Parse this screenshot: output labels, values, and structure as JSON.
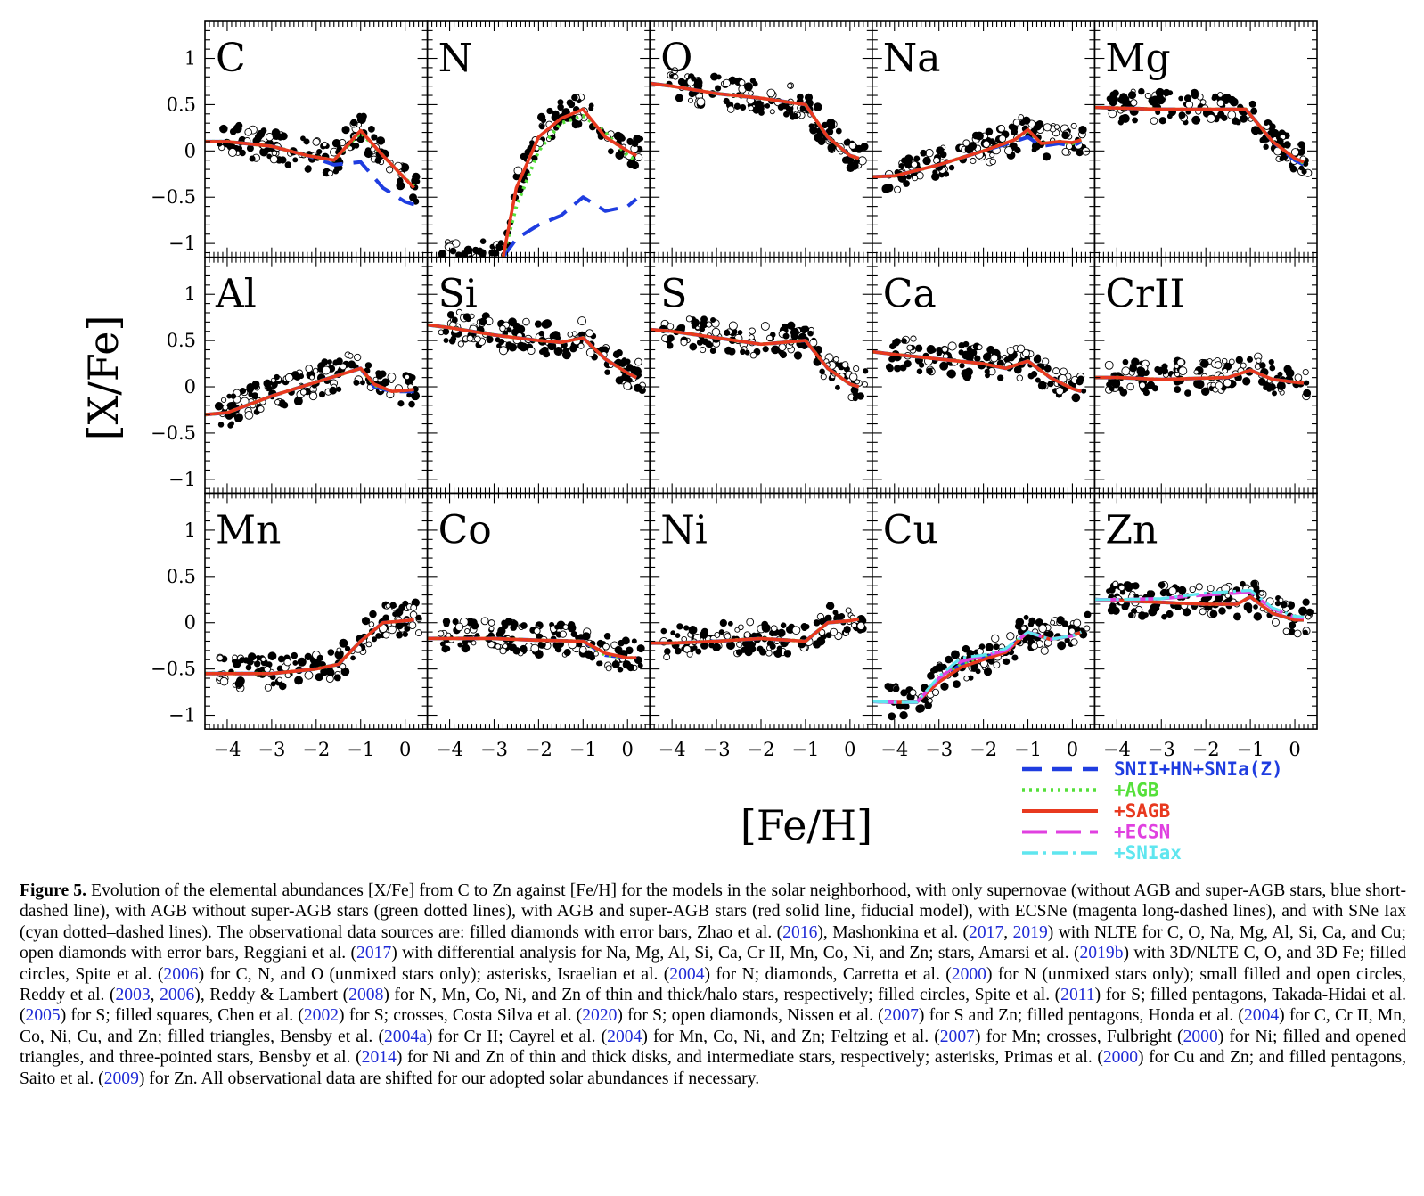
{
  "chart_data": {
    "type": "line",
    "title": "",
    "xlabel": "[Fe/H]",
    "ylabel": "[X/Fe]",
    "xlim": [
      -4.5,
      0.5
    ],
    "ylim": [
      -1.15,
      1.4
    ],
    "xticks": [
      {
        "v": -4,
        "label": "−4"
      },
      {
        "v": -3,
        "label": "−3"
      },
      {
        "v": -2,
        "label": "−2"
      },
      {
        "v": -1,
        "label": "−1"
      },
      {
        "v": 0,
        "label": "0"
      }
    ],
    "yticks": [
      {
        "v": 1,
        "label": "1"
      },
      {
        "v": 0.5,
        "label": "0.5"
      },
      {
        "v": 0,
        "label": "0"
      },
      {
        "v": -0.5,
        "label": "−0.5"
      },
      {
        "v": -1,
        "label": "−1"
      }
    ],
    "legend": {
      "position": "bottom-right",
      "entries": [
        {
          "label": "SNII+HN+SNIa(Z)",
          "color": "#1f3de0",
          "style": "dashed"
        },
        {
          "label": "+AGB",
          "color": "#55e03a",
          "style": "dotted"
        },
        {
          "label": "+SAGB",
          "color": "#e8391f",
          "style": "solid"
        },
        {
          "label": "+ECSN",
          "color": "#e040e0",
          "style": "longdash"
        },
        {
          "label": "+SNIax",
          "color": "#5fe6ef",
          "style": "dashdot"
        }
      ]
    },
    "panels": [
      {
        "element": "C",
        "x": [
          -4.5,
          -4,
          -3,
          -2.2,
          -1.6,
          -1,
          -0.5,
          0,
          0.2
        ],
        "series": {
          "SNII+HN+SNIa(Z)": [
            0.1,
            0.1,
            0.05,
            -0.05,
            -0.15,
            -0.12,
            -0.4,
            -0.55,
            -0.58
          ],
          "+AGB": [
            0.1,
            0.1,
            0.05,
            -0.05,
            -0.1,
            0.2,
            -0.05,
            -0.3,
            -0.38
          ],
          "+SAGB": [
            0.1,
            0.1,
            0.05,
            -0.05,
            -0.1,
            0.22,
            -0.05,
            -0.3,
            -0.4
          ]
        }
      },
      {
        "element": "N",
        "x": [
          -2.8,
          -2.5,
          -2,
          -1.5,
          -1,
          -0.5,
          0,
          0.2
        ],
        "series": {
          "SNII+HN+SNIa(Z)": [
            -1.15,
            -0.95,
            -0.8,
            -0.7,
            -0.5,
            -0.65,
            -0.6,
            -0.52
          ],
          "+AGB": [
            -1.15,
            -0.6,
            0,
            0.3,
            0.38,
            0.2,
            -0.05,
            -0.1
          ],
          "+SAGB": [
            -1.15,
            -0.4,
            0.15,
            0.35,
            0.45,
            0.15,
            0.0,
            -0.05
          ]
        }
      },
      {
        "element": "O",
        "x": [
          -4.5,
          -4,
          -3,
          -2,
          -1,
          -0.5,
          0,
          0.2
        ],
        "series": {
          "SNII+HN+SNIa(Z)": [
            0.73,
            0.7,
            0.62,
            0.57,
            0.5,
            0.15,
            -0.05,
            -0.08
          ],
          "+AGB": [
            0.73,
            0.7,
            0.62,
            0.57,
            0.5,
            0.15,
            -0.05,
            -0.08
          ],
          "+SAGB": [
            0.73,
            0.7,
            0.62,
            0.57,
            0.5,
            0.15,
            -0.05,
            -0.08
          ]
        }
      },
      {
        "element": "Na",
        "x": [
          -4.5,
          -4,
          -3,
          -2,
          -1.3,
          -1,
          -0.7,
          -0.3,
          0,
          0.2
        ],
        "series": {
          "SNII+HN+SNIa(Z)": [
            -0.28,
            -0.27,
            -0.15,
            0,
            0.1,
            0.15,
            0.05,
            0.08,
            0.05,
            0.1
          ],
          "+AGB": [
            -0.28,
            -0.27,
            -0.15,
            0,
            0.12,
            0.22,
            0.08,
            0.1,
            0.08,
            0.12
          ],
          "+SAGB": [
            -0.28,
            -0.27,
            -0.15,
            0,
            0.12,
            0.23,
            0.08,
            0.1,
            0.09,
            0.12
          ]
        }
      },
      {
        "element": "Mg",
        "x": [
          -4.5,
          -3,
          -2,
          -1.1,
          -0.5,
          0,
          0.2
        ],
        "series": {
          "SNII+HN+SNIa(Z)": [
            0.47,
            0.45,
            0.45,
            0.45,
            0.1,
            -0.1,
            -0.15
          ],
          "+AGB": [
            0.47,
            0.45,
            0.45,
            0.45,
            0.1,
            -0.08,
            -0.13
          ],
          "+SAGB": [
            0.47,
            0.45,
            0.45,
            0.45,
            0.1,
            -0.08,
            -0.12
          ]
        }
      },
      {
        "element": "Al",
        "x": [
          -4.5,
          -4,
          -3,
          -2,
          -1,
          -0.7,
          -0.3,
          0,
          0.2
        ],
        "series": {
          "SNII+HN+SNIa(Z)": [
            -0.3,
            -0.28,
            -0.1,
            0.05,
            0.2,
            0,
            -0.05,
            -0.05,
            -0.05
          ],
          "+AGB": [
            -0.3,
            -0.28,
            -0.1,
            0.05,
            0.2,
            0.02,
            -0.05,
            -0.04,
            -0.03
          ],
          "+SAGB": [
            -0.3,
            -0.28,
            -0.1,
            0.05,
            0.2,
            0.03,
            -0.05,
            -0.04,
            -0.03
          ]
        }
      },
      {
        "element": "Si",
        "x": [
          -4.5,
          -4,
          -3,
          -2,
          -1.5,
          -1,
          -0.5,
          0,
          0.2
        ],
        "series": {
          "SNII+HN+SNIa(Z)": [
            0.67,
            0.64,
            0.56,
            0.5,
            0.48,
            0.53,
            0.3,
            0.15,
            0.1
          ],
          "+AGB": [
            0.67,
            0.64,
            0.56,
            0.5,
            0.48,
            0.53,
            0.3,
            0.15,
            0.1
          ],
          "+SAGB": [
            0.67,
            0.64,
            0.56,
            0.5,
            0.48,
            0.53,
            0.3,
            0.15,
            0.1
          ]
        }
      },
      {
        "element": "S",
        "x": [
          -4.5,
          -4,
          -3,
          -2,
          -1,
          -0.5,
          0,
          0.2
        ],
        "series": {
          "SNII+HN+SNIa(Z)": [
            0.62,
            0.6,
            0.53,
            0.46,
            0.5,
            0.2,
            0.03,
            0
          ],
          "+AGB": [
            0.62,
            0.6,
            0.53,
            0.46,
            0.5,
            0.2,
            0.03,
            0
          ],
          "+SAGB": [
            0.62,
            0.6,
            0.53,
            0.46,
            0.5,
            0.2,
            0.03,
            0
          ]
        }
      },
      {
        "element": "Ca",
        "x": [
          -4.5,
          -4,
          -3,
          -2,
          -1.5,
          -1,
          -0.5,
          0,
          0.2
        ],
        "series": {
          "SNII+HN+SNIa(Z)": [
            0.38,
            0.35,
            0.3,
            0.25,
            0.2,
            0.28,
            0.1,
            -0.02,
            -0.05
          ],
          "+AGB": [
            0.38,
            0.35,
            0.3,
            0.25,
            0.2,
            0.28,
            0.1,
            -0.02,
            -0.05
          ],
          "+SAGB": [
            0.38,
            0.35,
            0.3,
            0.25,
            0.2,
            0.28,
            0.1,
            -0.02,
            -0.05
          ]
        }
      },
      {
        "element": "CrII",
        "x": [
          -4.5,
          -4,
          -3,
          -1.5,
          -1,
          -0.5,
          0,
          0.2
        ],
        "series": {
          "SNII+HN+SNIa(Z)": [
            0.1,
            0.1,
            0.08,
            0.1,
            0.18,
            0.08,
            0.05,
            0.04
          ],
          "+AGB": [
            0.1,
            0.1,
            0.08,
            0.1,
            0.18,
            0.08,
            0.05,
            0.04
          ],
          "+SAGB": [
            0.1,
            0.1,
            0.08,
            0.1,
            0.18,
            0.08,
            0.05,
            0.04
          ]
        }
      },
      {
        "element": "Mn",
        "x": [
          -4.5,
          -4,
          -3,
          -2,
          -1.5,
          -1,
          -0.5,
          0,
          0.2
        ],
        "series": {
          "SNII+HN+SNIa(Z)": [
            -0.55,
            -0.55,
            -0.55,
            -0.5,
            -0.45,
            -0.2,
            0,
            0.02,
            0.03
          ],
          "+AGB": [
            -0.55,
            -0.55,
            -0.55,
            -0.5,
            -0.45,
            -0.2,
            0,
            0.02,
            0.03
          ],
          "+SAGB": [
            -0.55,
            -0.55,
            -0.55,
            -0.5,
            -0.45,
            -0.2,
            0,
            0.02,
            0.03
          ]
        }
      },
      {
        "element": "Co",
        "x": [
          -4.5,
          -4,
          -3,
          -2,
          -1,
          -0.5,
          0,
          0.2
        ],
        "series": {
          "SNII+HN+SNIa(Z)": [
            -0.17,
            -0.17,
            -0.17,
            -0.19,
            -0.2,
            -0.35,
            -0.38,
            -0.38
          ],
          "+AGB": [
            -0.17,
            -0.17,
            -0.17,
            -0.19,
            -0.2,
            -0.35,
            -0.38,
            -0.38
          ],
          "+SAGB": [
            -0.17,
            -0.17,
            -0.17,
            -0.19,
            -0.2,
            -0.33,
            -0.38,
            -0.38
          ]
        }
      },
      {
        "element": "Ni",
        "x": [
          -4.5,
          -4,
          -3,
          -2,
          -1,
          -0.5,
          0,
          0.2
        ],
        "series": {
          "SNII+HN+SNIa(Z)": [
            -0.22,
            -0.22,
            -0.2,
            -0.17,
            -0.2,
            0,
            0.02,
            0.04
          ],
          "+AGB": [
            -0.22,
            -0.22,
            -0.2,
            -0.17,
            -0.2,
            0,
            0.02,
            0.04
          ],
          "+SAGB": [
            -0.22,
            -0.22,
            -0.2,
            -0.17,
            -0.2,
            0,
            0.02,
            0.04
          ]
        }
      },
      {
        "element": "Cu",
        "x": [
          -4.5,
          -4,
          -3.5,
          -3,
          -2.5,
          -2,
          -1.5,
          -1,
          -0.5,
          0,
          0.2
        ],
        "series": {
          "SNII+HN+SNIa(Z)": [
            -0.85,
            -0.86,
            -0.86,
            -0.62,
            -0.45,
            -0.38,
            -0.3,
            -0.1,
            -0.18,
            -0.14,
            -0.1
          ],
          "+AGB": [
            -0.85,
            -0.86,
            -0.86,
            -0.62,
            -0.45,
            -0.38,
            -0.3,
            -0.1,
            -0.18,
            -0.14,
            -0.1
          ],
          "+SAGB": [
            -0.85,
            -0.86,
            -0.86,
            -0.64,
            -0.48,
            -0.4,
            -0.32,
            -0.1,
            -0.18,
            -0.14,
            -0.1
          ],
          "+ECSN": [
            -0.85,
            -0.86,
            -0.86,
            -0.6,
            -0.42,
            -0.36,
            -0.3,
            -0.1,
            -0.18,
            -0.14,
            -0.1
          ],
          "+SNIax": [
            -0.85,
            -0.86,
            -0.86,
            -0.58,
            -0.38,
            -0.35,
            -0.28,
            -0.1,
            -0.18,
            -0.14,
            -0.1
          ]
        }
      },
      {
        "element": "Zn",
        "x": [
          -4.5,
          -4,
          -3,
          -2,
          -1.3,
          -1,
          -0.5,
          0,
          0.2
        ],
        "series": {
          "SNII+HN+SNIa(Z)": [
            0.25,
            0.24,
            0.22,
            0.2,
            0.2,
            0.28,
            0.1,
            0.03,
            0.03
          ],
          "+AGB": [
            0.25,
            0.24,
            0.22,
            0.2,
            0.2,
            0.28,
            0.1,
            0.03,
            0.03
          ],
          "+SAGB": [
            0.25,
            0.24,
            0.22,
            0.2,
            0.2,
            0.28,
            0.1,
            0.03,
            0.03
          ],
          "+ECSN": [
            0.25,
            0.25,
            0.26,
            0.3,
            0.32,
            0.33,
            0.15,
            0.06,
            0.05
          ],
          "+SNIax": [
            0.25,
            0.25,
            0.26,
            0.32,
            0.34,
            0.35,
            0.16,
            0.07,
            0.06
          ]
        }
      }
    ]
  },
  "caption": {
    "label": "Figure 5.",
    "segments": [
      {
        "t": " Evolution of the elemental abundances [X/Fe] from C to Zn against [Fe/H] for the models in the solar neighborhood, with only supernovae (without AGB and super-AGB stars, blue short-dashed line), with AGB without super-AGB stars (green dotted lines), with AGB and super-AGB stars (red solid line, fiducial model), with ECSNe (magenta long-dashed lines), and with SNe Iax (cyan dotted–dashed lines). The observational data sources are: filled diamonds with error bars, Zhao et al. ("
      },
      {
        "t": "2016",
        "ref": true
      },
      {
        "t": "), Mashonkina et al. ("
      },
      {
        "t": "2017",
        "ref": true
      },
      {
        "t": ", "
      },
      {
        "t": "2019",
        "ref": true
      },
      {
        "t": ") with NLTE for C, O, Na, Mg, Al, Si, Ca, and Cu; open diamonds with error bars, Reggiani et al. ("
      },
      {
        "t": "2017",
        "ref": true
      },
      {
        "t": ") with differential analysis for Na, Mg, Al, Si, Ca, Cr II, Mn, Co, Ni, and Zn; stars, Amarsi et al. ("
      },
      {
        "t": "2019b",
        "ref": true
      },
      {
        "t": ") with 3D/NLTE C, O, and 3D Fe; filled circles, Spite et al. ("
      },
      {
        "t": "2006",
        "ref": true
      },
      {
        "t": ") for C, N, and O (unmixed stars only); asterisks, Israelian et al. ("
      },
      {
        "t": "2004",
        "ref": true
      },
      {
        "t": ") for N; diamonds, Carretta et al. ("
      },
      {
        "t": "2000",
        "ref": true
      },
      {
        "t": ") for N (unmixed stars only); small filled and open circles, Reddy et al. ("
      },
      {
        "t": "2003",
        "ref": true
      },
      {
        "t": ", "
      },
      {
        "t": "2006",
        "ref": true
      },
      {
        "t": "), Reddy & Lambert ("
      },
      {
        "t": "2008",
        "ref": true
      },
      {
        "t": ") for N, Mn, Co, Ni, and Zn of thin and thick/halo stars, respectively; filled circles, Spite et al. ("
      },
      {
        "t": "2011",
        "ref": true
      },
      {
        "t": ") for S; filled pentagons, Takada-Hidai et al. ("
      },
      {
        "t": "2005",
        "ref": true
      },
      {
        "t": ") for S; filled squares, Chen et al. ("
      },
      {
        "t": "2002",
        "ref": true
      },
      {
        "t": ") for S; crosses, Costa Silva et al. ("
      },
      {
        "t": "2020",
        "ref": true
      },
      {
        "t": ") for S; open diamonds, Nissen et al. ("
      },
      {
        "t": "2007",
        "ref": true
      },
      {
        "t": ") for S and Zn; filled pentagons, Honda et al. ("
      },
      {
        "t": "2004",
        "ref": true
      },
      {
        "t": ") for C, Cr II, Mn, Co, Ni, Cu, and Zn; filled triangles, Bensby et al. ("
      },
      {
        "t": "2004a",
        "ref": true
      },
      {
        "t": ") for Cr II; Cayrel et al. ("
      },
      {
        "t": "2004",
        "ref": true
      },
      {
        "t": ") for Mn, Co, Ni, and Zn; Feltzing et al. ("
      },
      {
        "t": "2007",
        "ref": true
      },
      {
        "t": ") for Mn; crosses, Fulbright ("
      },
      {
        "t": "2000",
        "ref": true
      },
      {
        "t": ") for Ni; filled and opened triangles, and three-pointed stars, Bensby et al. ("
      },
      {
        "t": "2014",
        "ref": true
      },
      {
        "t": ") for Ni and Zn of thin and thick disks, and intermediate stars, respectively; asterisks, Primas et al. ("
      },
      {
        "t": "2000",
        "ref": true
      },
      {
        "t": ") for Cu and Zn; and filled pentagons, Saito et al. ("
      },
      {
        "t": "2009",
        "ref": true
      },
      {
        "t": ") for Zn. All observational data are shifted for our adopted solar abundances if necessary."
      }
    ]
  }
}
